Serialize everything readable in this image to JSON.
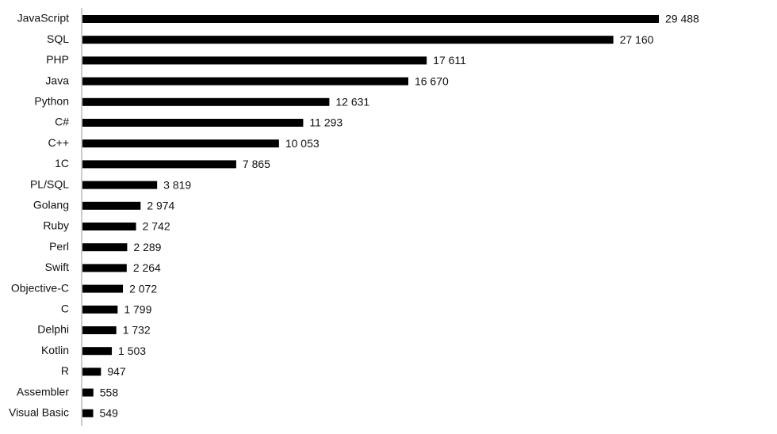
{
  "chart_data": {
    "type": "bar",
    "orientation": "horizontal",
    "color": "#000000",
    "categories": [
      "JavaScript",
      "SQL",
      "PHP",
      "Java",
      "Python",
      "C#",
      "C++",
      "1C",
      "PL/SQL",
      "Golang",
      "Ruby",
      "Perl",
      "Swift",
      "Objective-C",
      "C",
      "Delphi",
      "Kotlin",
      "R",
      "Assembler",
      "Visual Basic"
    ],
    "values": [
      29488,
      27160,
      17611,
      16670,
      12631,
      11293,
      10053,
      7865,
      3819,
      2974,
      2742,
      2289,
      2264,
      2072,
      1799,
      1732,
      1503,
      947,
      558,
      549
    ],
    "value_labels": [
      "29 488",
      "27 160",
      "17 611",
      "16 670",
      "12 631",
      "11 293",
      "10 053",
      "7 865",
      "3 819",
      "2 974",
      "2 742",
      "2 289",
      "2 264",
      "2 072",
      "1 799",
      "1 732",
      "1 503",
      "947",
      "558",
      "549"
    ]
  }
}
